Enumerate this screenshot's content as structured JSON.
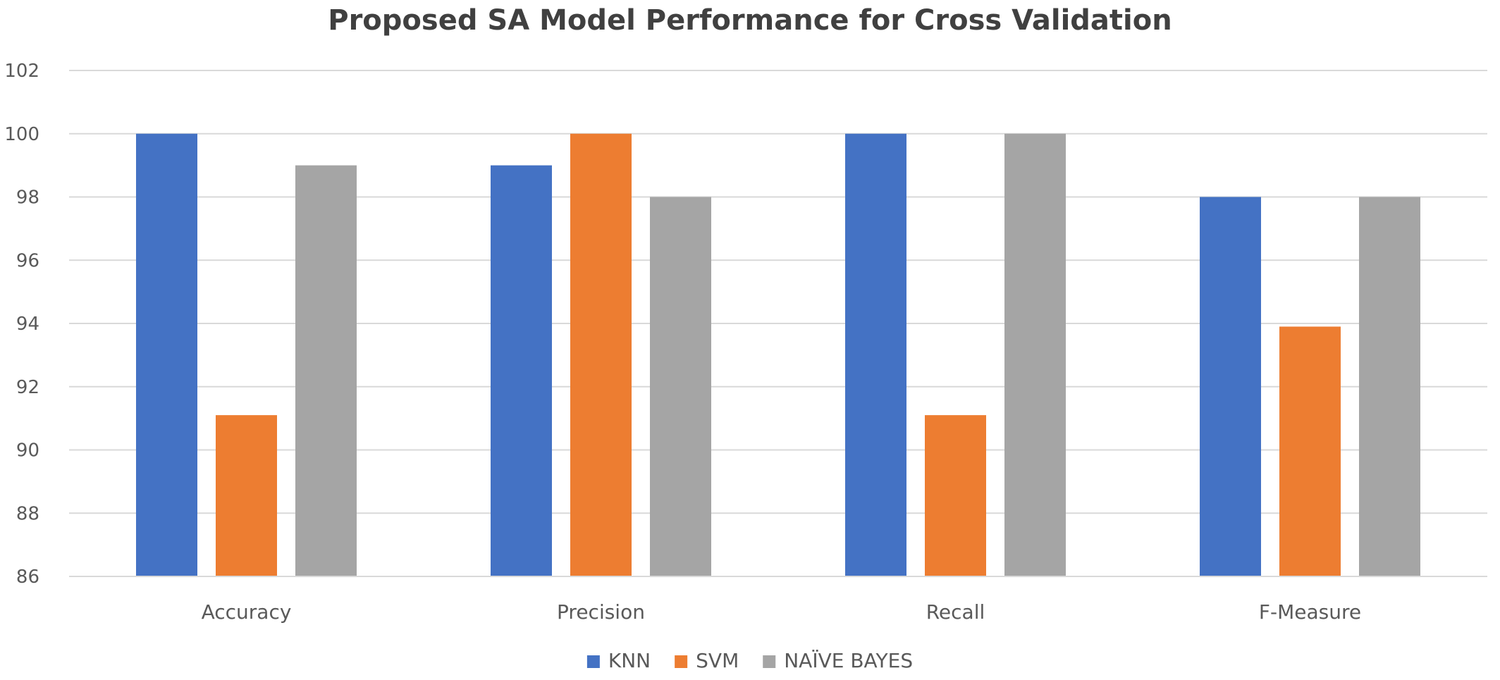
{
  "chart_data": {
    "type": "bar",
    "title": "Proposed SA Model Performance for Cross Validation",
    "xlabel": "",
    "ylabel": "",
    "categories": [
      "Accuracy",
      "Precision",
      "Recall",
      "F-Measure"
    ],
    "series": [
      {
        "name": "KNN",
        "color": "#4472C4",
        "values": [
          100,
          99,
          100,
          98
        ]
      },
      {
        "name": "SVM",
        "color": "#ED7D31",
        "values": [
          91.1,
          100,
          91.1,
          93.9
        ]
      },
      {
        "name": "NAÏVE BAYES",
        "color": "#A5A5A5",
        "values": [
          99,
          98,
          100,
          98
        ]
      }
    ],
    "ylim": [
      86,
      102
    ],
    "yticks": [
      "86",
      "88",
      "90",
      "92",
      "94",
      "96",
      "98",
      "100",
      "102"
    ],
    "grid": true,
    "legend_position": "bottom"
  }
}
